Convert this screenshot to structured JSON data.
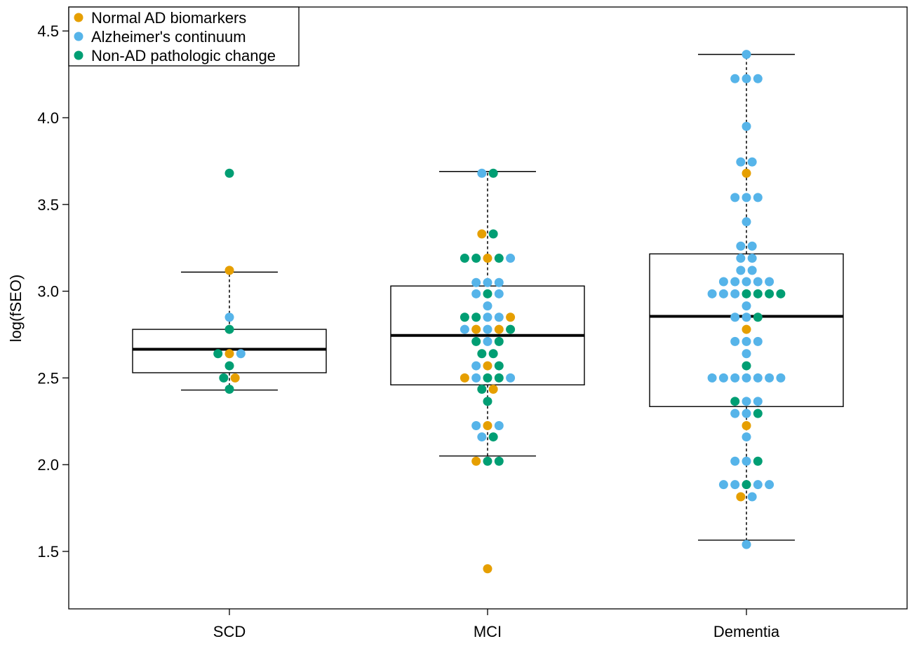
{
  "chart_data": {
    "type": "box-swarm",
    "ylabel": "log(fSEO)",
    "ylim": [
      1.2,
      4.62
    ],
    "yticks": [
      1.5,
      2.0,
      2.5,
      3.0,
      3.5,
      4.0,
      4.5
    ],
    "ytick_labels": [
      "1.5",
      "2.0",
      "2.5",
      "3.0",
      "3.5",
      "4.0",
      "4.5"
    ],
    "categories": [
      "SCD",
      "MCI",
      "Dementia"
    ],
    "legend": {
      "position": "top-left",
      "entries": [
        {
          "key": "normal",
          "label": "Normal AD biomarkers",
          "color": "#E69F00"
        },
        {
          "key": "alz",
          "label": "Alzheimer's continuum",
          "color": "#56B4E9"
        },
        {
          "key": "nonad",
          "label": "Non-AD pathologic change",
          "color": "#009E73"
        }
      ]
    },
    "boxes": [
      {
        "group": "SCD",
        "q1": 2.53,
        "median": 2.665,
        "q3": 2.78,
        "whisker_low": 2.43,
        "whisker_high": 3.11
      },
      {
        "group": "MCI",
        "q1": 2.46,
        "median": 2.745,
        "q3": 3.03,
        "whisker_low": 2.05,
        "whisker_high": 3.69
      },
      {
        "group": "Dementia",
        "q1": 2.335,
        "median": 2.855,
        "q3": 3.215,
        "whisker_low": 1.565,
        "whisker_high": 4.365
      }
    ],
    "points": {
      "SCD": [
        {
          "y": 3.68,
          "c": "nonad"
        },
        {
          "y": 3.12,
          "c": "normal"
        },
        {
          "y": 2.85,
          "c": "alz"
        },
        {
          "y": 2.78,
          "c": "nonad"
        },
        {
          "y": 2.64,
          "c": "nonad"
        },
        {
          "y": 2.64,
          "c": "normal"
        },
        {
          "y": 2.64,
          "c": "alz"
        },
        {
          "y": 2.57,
          "c": "nonad"
        },
        {
          "y": 2.5,
          "c": "nonad"
        },
        {
          "y": 2.5,
          "c": "normal"
        },
        {
          "y": 2.435,
          "c": "nonad"
        }
      ],
      "MCI": [
        {
          "y": 3.68,
          "c": "alz"
        },
        {
          "y": 3.68,
          "c": "nonad"
        },
        {
          "y": 3.33,
          "c": "normal"
        },
        {
          "y": 3.33,
          "c": "nonad"
        },
        {
          "y": 3.19,
          "c": "nonad"
        },
        {
          "y": 3.19,
          "c": "nonad"
        },
        {
          "y": 3.19,
          "c": "normal"
        },
        {
          "y": 3.19,
          "c": "nonad"
        },
        {
          "y": 3.19,
          "c": "alz"
        },
        {
          "y": 3.05,
          "c": "alz"
        },
        {
          "y": 3.05,
          "c": "alz"
        },
        {
          "y": 3.05,
          "c": "alz"
        },
        {
          "y": 2.985,
          "c": "alz"
        },
        {
          "y": 2.985,
          "c": "nonad"
        },
        {
          "y": 2.985,
          "c": "alz"
        },
        {
          "y": 2.915,
          "c": "alz"
        },
        {
          "y": 2.85,
          "c": "nonad"
        },
        {
          "y": 2.85,
          "c": "nonad"
        },
        {
          "y": 2.85,
          "c": "alz"
        },
        {
          "y": 2.85,
          "c": "alz"
        },
        {
          "y": 2.85,
          "c": "normal"
        },
        {
          "y": 2.78,
          "c": "alz"
        },
        {
          "y": 2.78,
          "c": "normal"
        },
        {
          "y": 2.78,
          "c": "alz"
        },
        {
          "y": 2.78,
          "c": "normal"
        },
        {
          "y": 2.78,
          "c": "nonad"
        },
        {
          "y": 2.71,
          "c": "nonad"
        },
        {
          "y": 2.71,
          "c": "alz"
        },
        {
          "y": 2.71,
          "c": "nonad"
        },
        {
          "y": 2.64,
          "c": "nonad"
        },
        {
          "y": 2.64,
          "c": "nonad"
        },
        {
          "y": 2.57,
          "c": "alz"
        },
        {
          "y": 2.57,
          "c": "normal"
        },
        {
          "y": 2.57,
          "c": "nonad"
        },
        {
          "y": 2.5,
          "c": "normal"
        },
        {
          "y": 2.5,
          "c": "alz"
        },
        {
          "y": 2.5,
          "c": "nonad"
        },
        {
          "y": 2.5,
          "c": "nonad"
        },
        {
          "y": 2.5,
          "c": "alz"
        },
        {
          "y": 2.435,
          "c": "nonad"
        },
        {
          "y": 2.435,
          "c": "normal"
        },
        {
          "y": 2.365,
          "c": "nonad"
        },
        {
          "y": 2.225,
          "c": "alz"
        },
        {
          "y": 2.225,
          "c": "normal"
        },
        {
          "y": 2.225,
          "c": "alz"
        },
        {
          "y": 2.16,
          "c": "alz"
        },
        {
          "y": 2.16,
          "c": "nonad"
        },
        {
          "y": 2.02,
          "c": "normal"
        },
        {
          "y": 2.02,
          "c": "nonad"
        },
        {
          "y": 2.02,
          "c": "nonad"
        },
        {
          "y": 1.4,
          "c": "normal"
        }
      ],
      "Dementia": [
        {
          "y": 4.365,
          "c": "alz"
        },
        {
          "y": 4.225,
          "c": "alz"
        },
        {
          "y": 4.225,
          "c": "alz"
        },
        {
          "y": 4.225,
          "c": "alz"
        },
        {
          "y": 3.95,
          "c": "alz"
        },
        {
          "y": 3.745,
          "c": "alz"
        },
        {
          "y": 3.745,
          "c": "alz"
        },
        {
          "y": 3.68,
          "c": "normal"
        },
        {
          "y": 3.54,
          "c": "alz"
        },
        {
          "y": 3.54,
          "c": "alz"
        },
        {
          "y": 3.54,
          "c": "alz"
        },
        {
          "y": 3.4,
          "c": "alz"
        },
        {
          "y": 3.26,
          "c": "alz"
        },
        {
          "y": 3.26,
          "c": "alz"
        },
        {
          "y": 3.19,
          "c": "alz"
        },
        {
          "y": 3.19,
          "c": "alz"
        },
        {
          "y": 3.12,
          "c": "alz"
        },
        {
          "y": 3.12,
          "c": "alz"
        },
        {
          "y": 3.055,
          "c": "alz"
        },
        {
          "y": 3.055,
          "c": "alz"
        },
        {
          "y": 3.055,
          "c": "alz"
        },
        {
          "y": 3.055,
          "c": "alz"
        },
        {
          "y": 3.055,
          "c": "alz"
        },
        {
          "y": 2.985,
          "c": "alz"
        },
        {
          "y": 2.985,
          "c": "alz"
        },
        {
          "y": 2.985,
          "c": "alz"
        },
        {
          "y": 2.985,
          "c": "nonad"
        },
        {
          "y": 2.985,
          "c": "nonad"
        },
        {
          "y": 2.985,
          "c": "nonad"
        },
        {
          "y": 2.985,
          "c": "nonad"
        },
        {
          "y": 2.915,
          "c": "alz"
        },
        {
          "y": 2.85,
          "c": "alz"
        },
        {
          "y": 2.85,
          "c": "alz"
        },
        {
          "y": 2.85,
          "c": "nonad"
        },
        {
          "y": 2.78,
          "c": "normal"
        },
        {
          "y": 2.71,
          "c": "alz"
        },
        {
          "y": 2.71,
          "c": "alz"
        },
        {
          "y": 2.71,
          "c": "alz"
        },
        {
          "y": 2.64,
          "c": "alz"
        },
        {
          "y": 2.57,
          "c": "nonad"
        },
        {
          "y": 2.5,
          "c": "alz"
        },
        {
          "y": 2.5,
          "c": "alz"
        },
        {
          "y": 2.5,
          "c": "alz"
        },
        {
          "y": 2.5,
          "c": "alz"
        },
        {
          "y": 2.5,
          "c": "alz"
        },
        {
          "y": 2.5,
          "c": "alz"
        },
        {
          "y": 2.5,
          "c": "alz"
        },
        {
          "y": 2.365,
          "c": "nonad"
        },
        {
          "y": 2.365,
          "c": "alz"
        },
        {
          "y": 2.365,
          "c": "alz"
        },
        {
          "y": 2.295,
          "c": "alz"
        },
        {
          "y": 2.295,
          "c": "alz"
        },
        {
          "y": 2.295,
          "c": "nonad"
        },
        {
          "y": 2.225,
          "c": "normal"
        },
        {
          "y": 2.16,
          "c": "alz"
        },
        {
          "y": 2.02,
          "c": "alz"
        },
        {
          "y": 2.02,
          "c": "alz"
        },
        {
          "y": 2.02,
          "c": "nonad"
        },
        {
          "y": 1.885,
          "c": "alz"
        },
        {
          "y": 1.885,
          "c": "alz"
        },
        {
          "y": 1.885,
          "c": "nonad"
        },
        {
          "y": 1.885,
          "c": "alz"
        },
        {
          "y": 1.885,
          "c": "alz"
        },
        {
          "y": 1.815,
          "c": "normal"
        },
        {
          "y": 1.815,
          "c": "alz"
        },
        {
          "y": 1.54,
          "c": "alz"
        }
      ]
    }
  }
}
